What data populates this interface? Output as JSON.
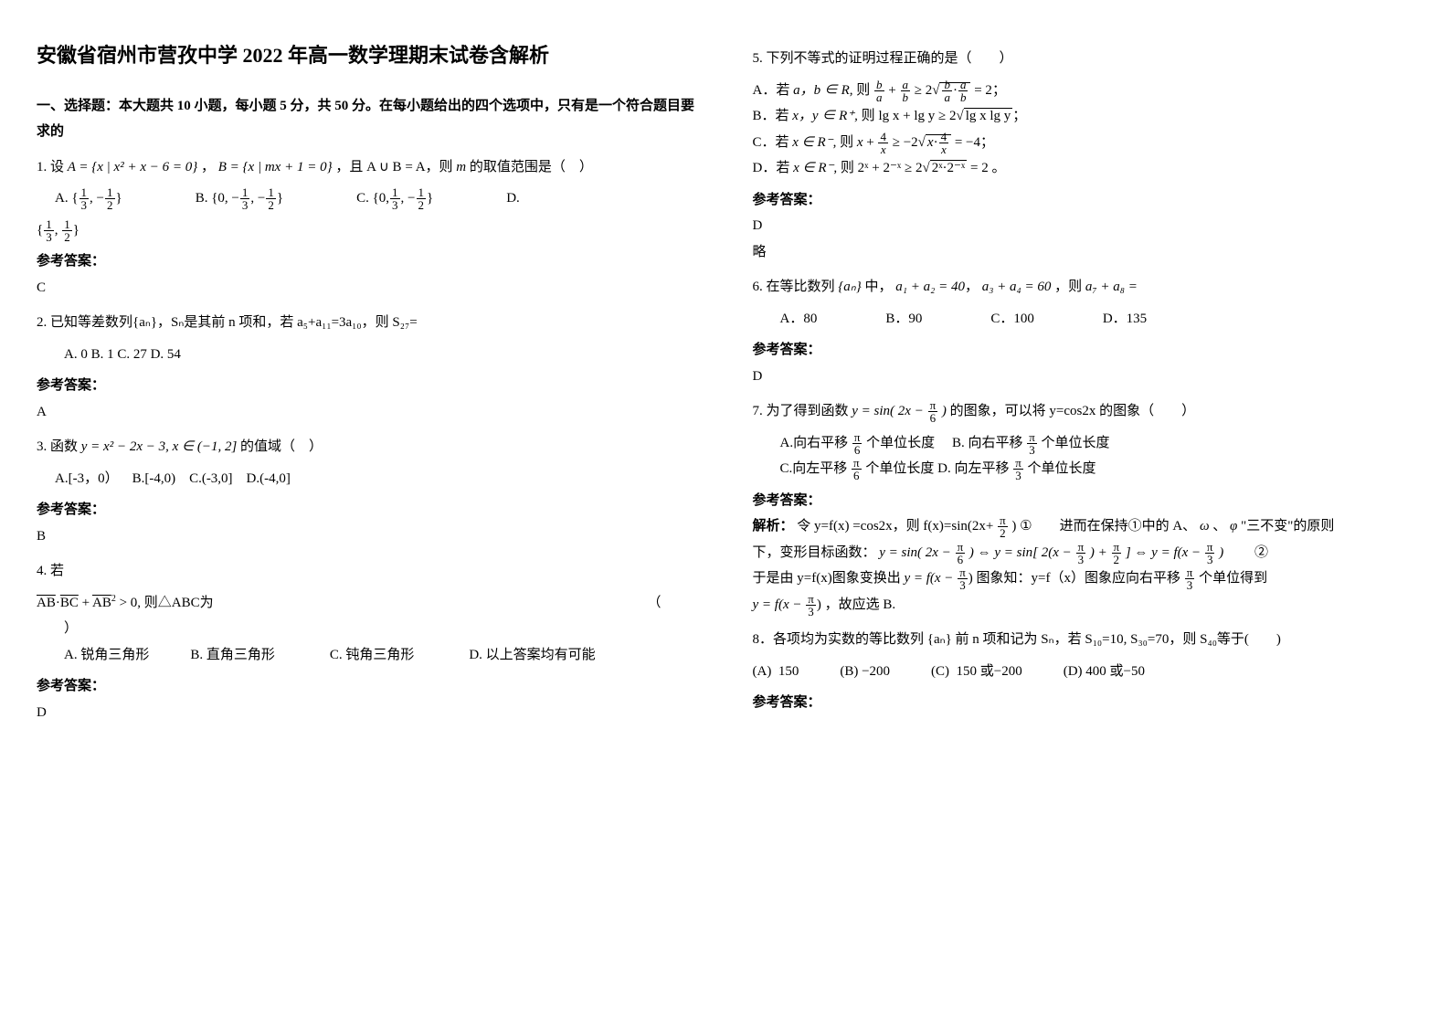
{
  "title": "安徽省宿州市营孜中学 2022 年高一数学理期末试卷含解析",
  "part1_heading": "一、选择题：本大题共 10 小题，每小题 5 分，共 50 分。在每小题给出的四个选项中，只有是一个符合题目要求的",
  "q1_prefix": "1. 设",
  "q1_A": "A = {x | x² + x − 6 = 0}",
  "q1_B": "B = {x | mx + 1 = 0}",
  "q1_mid": "，且 A ∪ B = A，则",
  "q1_tail": " 的取值范围是（　）",
  "q1_m": "m",
  "q1_optA_open": "{",
  "q1_optA_close": "}",
  "q1_optB_open": "{0, −",
  "q1_optB_close": "}",
  "q1_optC_open": "{0,",
  "q1_optC_close": "}",
  "q1_optD_open": "{",
  "q1_optD_close": "}",
  "q1_optA_lbl": "A.",
  "q1_optB_lbl": "B.",
  "q1_optC_lbl": "C.",
  "q1_optD_lbl": "D.",
  "f13n": "1",
  "f13d": "3",
  "fn12n": "1",
  "fn12d": "2",
  "ans_label": "参考答案：",
  "q1_ans": "C",
  "q2": "2. 已知等差数列{aₙ}，Sₙ是其前 n 项和，若 a₅+a₁₁=3a₁₀，则 S₂₇=",
  "q2_opts": "A. 0    B. 1    C. 27    D. 54",
  "q2_ans": "A",
  "q3_prefix": "3. 函数",
  "q3_expr": "y = x² − 2x − 3, x ∈ (−1, 2]",
  "q3_tail": "的值域（　）",
  "q3_opts": "A.[-3，0）    B.[-4,0)    C.(-3,0]    D.(-4,0]",
  "q3_ans": "B",
  "q4_prefix": "4. 若",
  "q4_expr_a": "AB",
  "q4_expr_b": "BC",
  "q4_expr_c": "AB",
  "q4_mid": " > 0, 则△ABC为",
  "q4_tail": "（\n　　）",
  "q4_opts": "A. 锐角三角形            B. 直角三角形                C. 钝角三角形                D. 以上答案均有可能",
  "q4_ans": "D",
  "q5": "5. 下列不等式的证明过程正确的是（　　）",
  "q5A_pre": "A．若",
  "q5A_cond": "a，b ∈ R,",
  "q5A_then": "则",
  "q5A_tail": " = 2",
  "q5B_pre": "B．若",
  "q5B_cond": "x，y ∈ R⁺,",
  "q5B_then": "则",
  "q5B_expr": "lg x + lg y ≥ 2",
  "q5B_sqrt": "lg x lg y",
  "q5C_pre": "C．若",
  "q5C_cond": "x ∈ R⁻,",
  "q5C_then": "则",
  "q5C_tail": " = −4",
  "q5D_pre": "D．若",
  "q5D_cond": "x ∈ R⁻,",
  "q5D_then": "则",
  "q5D_expr_a": "2ˣ + 2⁻ˣ ≥ 2",
  "q5D_sqrt": "2ˣ·2⁻ˣ",
  "q5D_tail": " = 2 。",
  "q5_ans": "D",
  "q5_note": "略",
  "q6_prefix": "6. 在等比数列",
  "q6_an": "{aₙ}",
  "q6_mid1": "中，",
  "q6_e1": "a₁ + a₂ = 40",
  "q6_e2": "a₃ + a₄ = 60",
  "q6_then": "，则",
  "q6_q": "a₇ + a₈ =",
  "q6_opts": "A．80                    B．90                    C．100                    D．135",
  "q6_ans": "D",
  "q7_prefix": "7. 为了得到函数",
  "q7_expr": "y = sin( 2x −",
  "q7_expr2": ")",
  "q7_tail": " 的图象，可以将 y=cos2x 的图象（　　）",
  "q7A": "A.向右平移",
  "q7A2": " 个单位长度",
  "q7B": "B. 向右平移",
  "q7B2": " 个单位长度",
  "q7C": "C.向左平移",
  "q7C2": " 个单位长度",
  "q7D": "D. 向左平移",
  "q7D2": " 个单位长度",
  "pi": "π",
  "n6": "6",
  "n3": "3",
  "n2": "2",
  "q7_ans_label": "参考答案：",
  "q7_sol_pre": "解析：",
  "q7_sol_1": "令 y=f(x) =cos2x，则 f(x)=sin(2x+",
  "q7_sol_1b": " ) ①　　进而在保持①中的 A、",
  "q7_sol_1c": " 、",
  "q7_sol_1d": " \"三不变\"的原则",
  "q7_w": "ω",
  "q7_p": "φ",
  "q7_sol_2a": "下，变形目标函数：",
  "q7_trans1": "y = sin( 2x −",
  "q7_trans1b": ") ⇔ y = sin[ 2(x −",
  "q7_trans1c": ") +",
  "q7_trans1d": "] ⇔ y = f(x −",
  "q7_trans1e": ")",
  "q7_sol_circ2": "②",
  "q7_sol_3a": "于是由 y=f(x)图象变换出",
  "q7_sol_3expr": "y = f(x −",
  "q7_sol_3b": " 图象知：y=f（x）图象应向右平移",
  "q7_sol_3c": " 个单位得到",
  "q7_sol_4expr": "y = f(x −",
  "q7_sol_4": "，故应选 B.",
  "q8": "8．各项均为实数的等比数列 {aₙ} 前 n 项和记为 Sₙ，若 S₁₀=10, S₃₀=70，则 S₄₀等于(　　)",
  "q8_opts": "(A)  150            (B) −200            (C)  150 或−200            (D) 400 或−50"
}
